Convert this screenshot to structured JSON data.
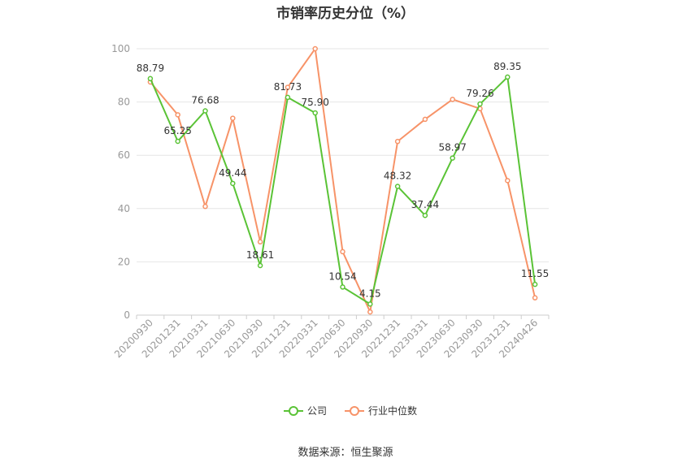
{
  "title": "市销率历史分位（%）",
  "source": "数据来源：恒生聚源",
  "colors": {
    "company": "#5ac336",
    "industry": "#f79368",
    "grid": "#e6e6e6",
    "axis": "#cccccc"
  },
  "chart_data": {
    "type": "line",
    "title": "市销率历史分位（%）",
    "x": [
      "20200930",
      "20201231",
      "20210331",
      "20210630",
      "20210930",
      "20211231",
      "20220331",
      "20220630",
      "20220930",
      "20221231",
      "20230331",
      "20230630",
      "20230930",
      "20231231",
      "20240426"
    ],
    "ylim": [
      0,
      100
    ],
    "yticks": [
      0,
      20,
      40,
      60,
      80,
      100
    ],
    "grid": true,
    "legend": "bottom-center",
    "series": [
      {
        "name": "公司",
        "color": "#5ac336",
        "values": [
          88.79,
          65.25,
          76.68,
          49.44,
          18.61,
          81.73,
          75.9,
          10.54,
          4.15,
          48.32,
          37.44,
          58.97,
          79.26,
          89.35,
          11.55
        ],
        "labels": [
          "88.79",
          "65.25",
          "76.68",
          "49.44",
          "18.61",
          "81.73",
          "75.90",
          "10.54",
          "4.15",
          "48.32",
          "37.44",
          "58.97",
          "79.26",
          "89.35",
          "11.55"
        ]
      },
      {
        "name": "行业中位数",
        "color": "#f79368",
        "values": [
          87.5,
          75.2,
          40.8,
          73.9,
          27.5,
          85.5,
          100,
          23.8,
          1.2,
          65.2,
          73.5,
          81.0,
          77.5,
          50.5,
          6.5
        ]
      }
    ]
  }
}
